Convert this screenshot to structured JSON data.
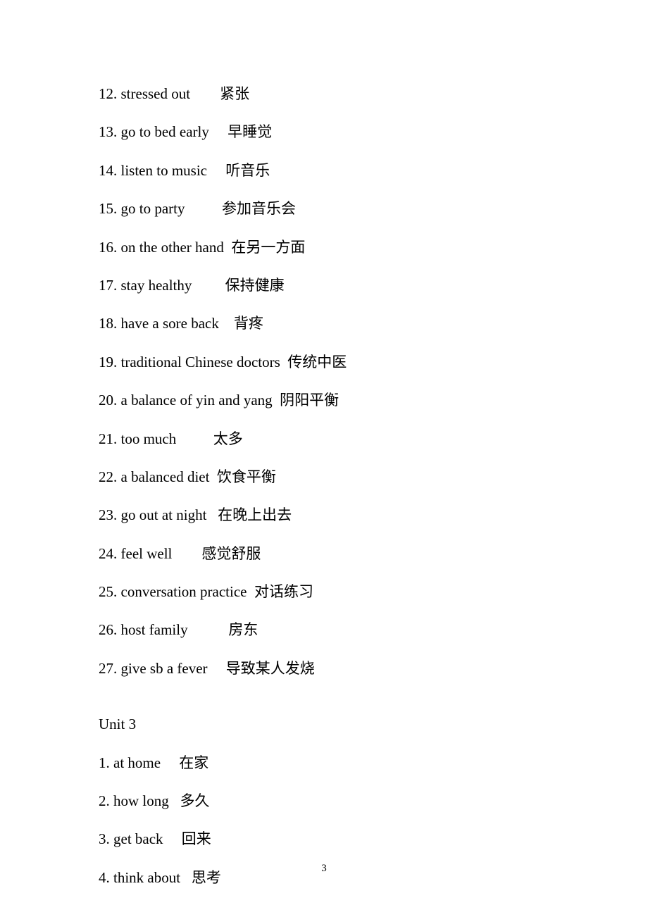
{
  "entries_block1": [
    {
      "num": "12",
      "en": "stressed out",
      "spacer": "        ",
      "zh": "紧张"
    },
    {
      "num": "13",
      "en": "go to bed early",
      "spacer": "     ",
      "zh": "早睡觉"
    },
    {
      "num": "14",
      "en": "listen to music",
      "spacer": "     ",
      "zh": "听音乐"
    },
    {
      "num": "15",
      "en": "go to party",
      "spacer": "          ",
      "zh": "参加音乐会"
    },
    {
      "num": "16",
      "en": "on the other hand",
      "spacer": "  ",
      "zh": "在另一方面"
    },
    {
      "num": "17",
      "en": "stay healthy",
      "spacer": "         ",
      "zh": "保持健康"
    },
    {
      "num": "18",
      "en": "have a sore back",
      "spacer": "    ",
      "zh": "背疼"
    },
    {
      "num": "19",
      "en": "traditional Chinese doctors",
      "spacer": "  ",
      "zh": "传统中医"
    },
    {
      "num": "20",
      "en": "a balance of yin and yang",
      "spacer": "  ",
      "zh": "阴阳平衡"
    },
    {
      "num": "21",
      "en": "too much",
      "spacer": "          ",
      "zh": "太多"
    },
    {
      "num": "22",
      "en": "a balanced diet",
      "spacer": "  ",
      "zh": "饮食平衡"
    },
    {
      "num": "23",
      "en": "go out at night",
      "spacer": "   ",
      "zh": "在晚上出去"
    },
    {
      "num": "24",
      "en": "feel well",
      "spacer": "        ",
      "zh": "感觉舒服"
    },
    {
      "num": "25",
      "en": "conversation practice",
      "spacer": "  ",
      "zh": "对话练习"
    },
    {
      "num": "26",
      "en": "host family",
      "spacer": "           ",
      "zh": "房东"
    },
    {
      "num": "27",
      "en": "give sb a fever",
      "spacer": "     ",
      "zh": "导致某人发烧"
    }
  ],
  "section_heading": "Unit 3",
  "entries_block2": [
    {
      "num": "1",
      "en": "at home",
      "spacer": "     ",
      "zh": "在家"
    },
    {
      "num": "2",
      "en": "how long",
      "spacer": "   ",
      "zh": "多久"
    },
    {
      "num": "3",
      "en": "get back",
      "spacer": "     ",
      "zh": "回来"
    },
    {
      "num": "4",
      "en": "think about",
      "spacer": "   ",
      "zh": "思考"
    }
  ],
  "page_number": "3",
  "text_color": "#000000",
  "background_color": "#ffffff",
  "font_size": 21,
  "page_num_font_size": 15
}
